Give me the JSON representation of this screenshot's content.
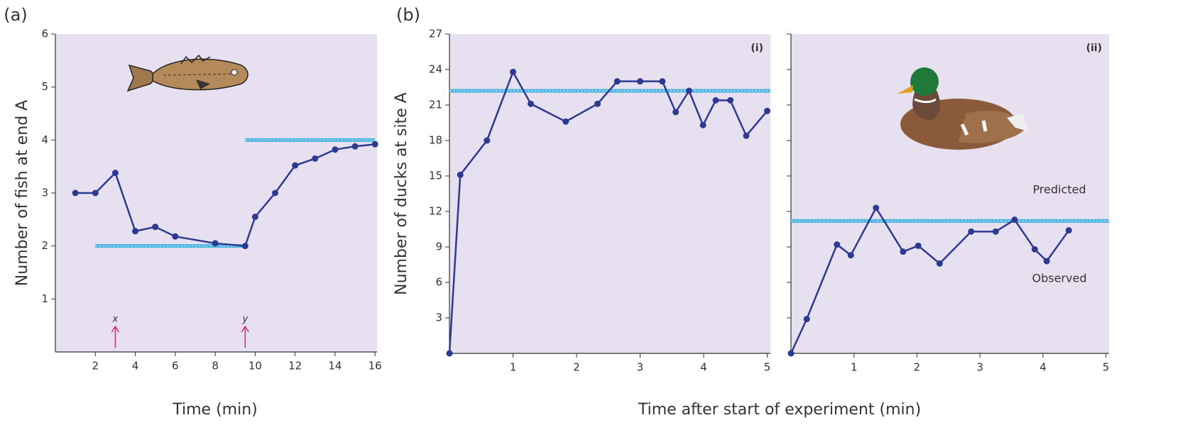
{
  "chart_data": [
    {
      "type": "line",
      "panel_label": "(a)",
      "ylabel": "Number of fish at end A",
      "xlabel": "Time (min)",
      "x": [
        1,
        2,
        3,
        4,
        5,
        6,
        8,
        9.5,
        10,
        11,
        12,
        13,
        14,
        15,
        16
      ],
      "values": [
        3,
        3,
        3.38,
        2.28,
        2.36,
        2.18,
        2.05,
        2.0,
        2.55,
        3.0,
        3.52,
        3.65,
        3.82,
        3.88,
        3.92
      ],
      "color": "#2e3a92",
      "reference_color": "#45b2df",
      "reference_lines": [
        {
          "from": 2,
          "to": 9.5,
          "value": 2
        },
        {
          "from": 9.5,
          "to": 16,
          "value": 4
        }
      ],
      "annotations": [
        {
          "text": "x",
          "x": 3
        },
        {
          "text": "y",
          "x": 9.5
        }
      ],
      "xlim": [
        0,
        16.1
      ],
      "ylim": [
        0,
        6
      ],
      "xticks": [
        2,
        4,
        6,
        8,
        10,
        12,
        14,
        16
      ],
      "yticks": [
        1,
        2,
        3,
        4,
        5,
        6
      ]
    },
    {
      "type": "line",
      "panel_label": "(b)",
      "corner_label": "(i)",
      "ylabel": "Number of ducks at site A",
      "xlabel": "Time after start of experiment (min)",
      "x": [
        0,
        0.17,
        0.59,
        1,
        1.28,
        1.83,
        2.33,
        2.64,
        3,
        3.35,
        3.56,
        3.77,
        3.99,
        4.19,
        4.42,
        4.67,
        5
      ],
      "values": [
        0,
        15.1,
        18,
        23.8,
        21.1,
        19.6,
        21.1,
        23,
        23,
        23,
        20.4,
        22.2,
        19.3,
        21.4,
        21.4,
        18.4,
        20.5
      ],
      "color": "#2e3a92",
      "reference_color": "#45b2df",
      "reference_lines": [
        {
          "value": 22.2
        }
      ],
      "xlim": [
        0,
        5.05
      ],
      "ylim": [
        0,
        27
      ],
      "xticks": [
        1,
        2,
        3,
        4,
        5
      ],
      "yticks": [
        3,
        6,
        9,
        12,
        15,
        18,
        21,
        24,
        27
      ]
    },
    {
      "type": "line",
      "corner_label": "(ii)",
      "x": [
        0,
        0.25,
        0.73,
        0.95,
        1.35,
        1.78,
        2.02,
        2.36,
        2.86,
        3.25,
        3.55,
        3.87,
        4.06,
        4.41
      ],
      "values": [
        0,
        2.9,
        9.2,
        8.3,
        12.3,
        8.6,
        9.1,
        7.6,
        10.3,
        10.3,
        11.3,
        8.8,
        7.8,
        10.4
      ],
      "color": "#2e3a92",
      "reference_color": "#45b2df",
      "reference_lines": [
        {
          "value": 11.2
        }
      ],
      "annotations": [
        {
          "text": "Predicted",
          "y": 13.8
        },
        {
          "text": "Observed",
          "y": 6.3
        }
      ],
      "xlim": [
        0,
        5.05
      ],
      "ylim": [
        0,
        27
      ],
      "xticks": [
        1,
        2,
        3,
        4,
        5
      ],
      "yticks": [
        3,
        6,
        9,
        12,
        15,
        18,
        21,
        24,
        27
      ]
    }
  ]
}
